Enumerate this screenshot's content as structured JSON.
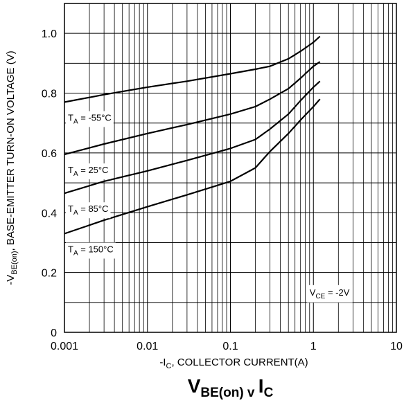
{
  "chart_data": {
    "type": "line",
    "title": "V_BE(on) v I_C",
    "title_parts": {
      "main": "V",
      "main_sub": "BE(on)",
      "mid": " v ",
      "tail": "I",
      "tail_sub": "C"
    },
    "xlabel": "-I_C, COLLECTOR CURRENT(A)",
    "xlabel_parts": {
      "pre": "-I",
      "sub": "C",
      "post": ", COLLECTOR CURRENT(A)"
    },
    "ylabel": "-V_BE(on), BASE-EMITTER TURN-ON VOLTAGE (V)",
    "ylabel_parts": {
      "pre": "-V",
      "sub": "BE(on)",
      "post": ", BASE-EMITTER TURN-ON VOLTAGE (V)"
    },
    "x_scale": "log",
    "xlim": [
      0.001,
      10
    ],
    "ylim": [
      0,
      1.1
    ],
    "x_ticks": [
      0.001,
      0.01,
      0.1,
      1,
      10
    ],
    "x_tick_labels": [
      "0.001",
      "0.01",
      "0.1",
      "1",
      "10"
    ],
    "y_ticks": [
      0,
      0.2,
      0.4,
      0.6,
      0.8,
      1.0
    ],
    "y_tick_labels": [
      "0",
      "0.2",
      "0.4",
      "0.6",
      "0.8",
      "1.0"
    ],
    "grid": true,
    "condition": {
      "pre": "V",
      "sub": "CE",
      "post": " = -2V"
    },
    "series": [
      {
        "name": "T_A = -55°C",
        "label": {
          "pre": "T",
          "sub": "A",
          "post": " = -55°C"
        },
        "x": [
          0.001,
          0.003,
          0.01,
          0.03,
          0.1,
          0.2,
          0.3,
          0.5,
          0.7,
          1.0,
          1.2
        ],
        "y": [
          0.77,
          0.795,
          0.82,
          0.84,
          0.865,
          0.88,
          0.89,
          0.915,
          0.94,
          0.97,
          0.99
        ]
      },
      {
        "name": "T_A = 25°C",
        "label": {
          "pre": "T",
          "sub": "A",
          "post": " = 25°C"
        },
        "x": [
          0.001,
          0.003,
          0.01,
          0.03,
          0.1,
          0.2,
          0.3,
          0.5,
          0.7,
          1.0,
          1.2
        ],
        "y": [
          0.595,
          0.63,
          0.665,
          0.695,
          0.73,
          0.755,
          0.78,
          0.815,
          0.85,
          0.89,
          0.905
        ]
      },
      {
        "name": "T_A = 85°C",
        "label": {
          "pre": "T",
          "sub": "A",
          "post": " = 85°C"
        },
        "x": [
          0.001,
          0.003,
          0.01,
          0.03,
          0.1,
          0.2,
          0.3,
          0.5,
          0.7,
          1.0,
          1.2
        ],
        "y": [
          0.465,
          0.505,
          0.54,
          0.575,
          0.615,
          0.645,
          0.68,
          0.73,
          0.775,
          0.82,
          0.84
        ]
      },
      {
        "name": "T_A = 150°C",
        "label": {
          "pre": "T",
          "sub": "A",
          "post": " = 150°C"
        },
        "x": [
          0.001,
          0.003,
          0.01,
          0.03,
          0.1,
          0.2,
          0.3,
          0.5,
          0.7,
          1.0,
          1.2
        ],
        "y": [
          0.33,
          0.375,
          0.42,
          0.46,
          0.505,
          0.55,
          0.605,
          0.665,
          0.71,
          0.755,
          0.78
        ]
      }
    ]
  }
}
